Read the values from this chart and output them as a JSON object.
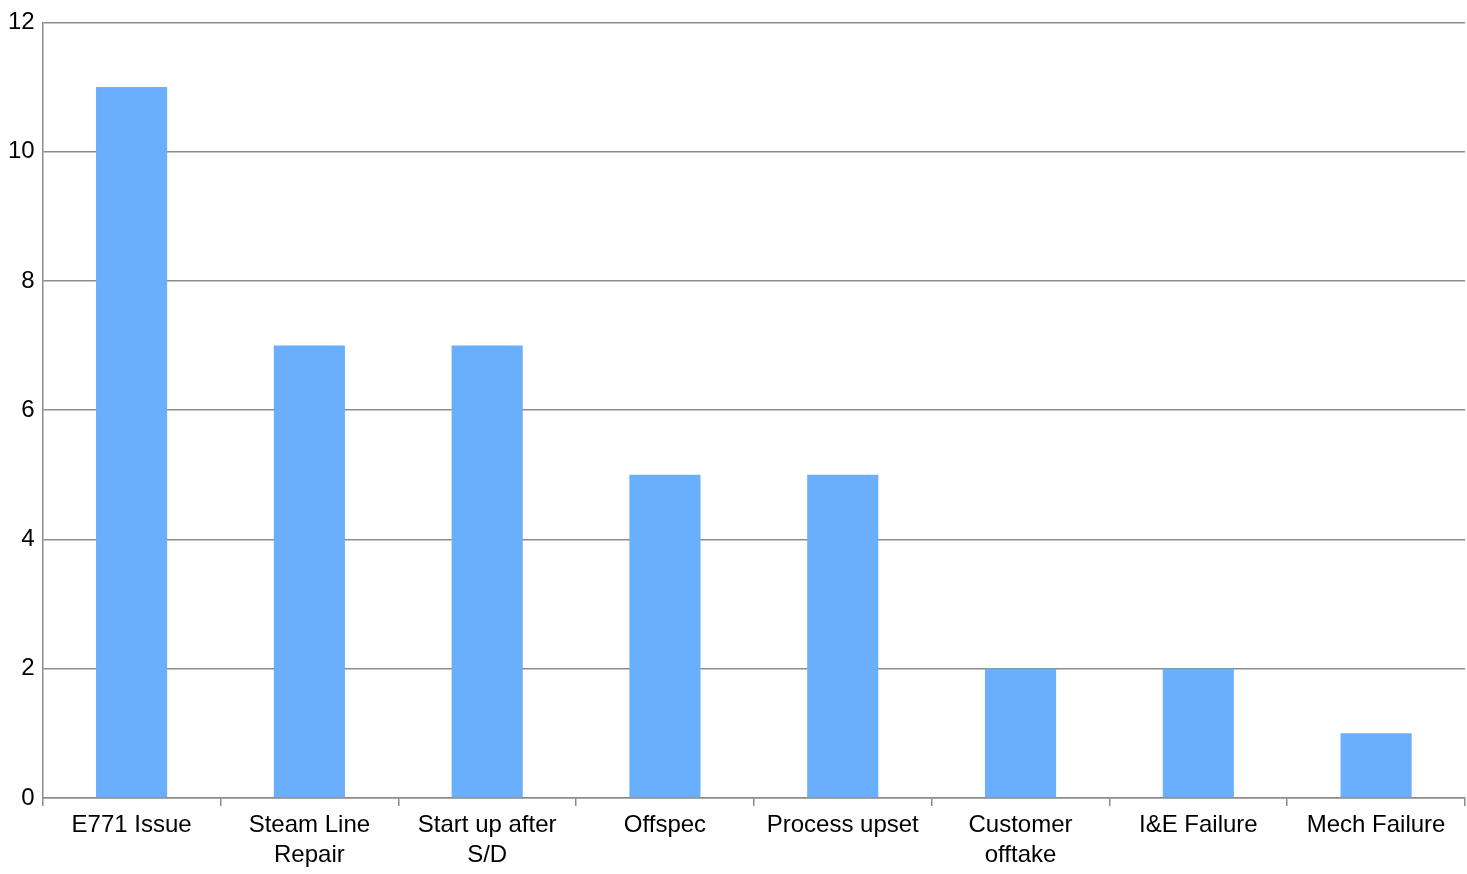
{
  "chart_data": {
    "type": "bar",
    "categories": [
      "E771 Issue",
      "Steam Line Repair",
      "Start up after S/D",
      "Offspec",
      "Process upset",
      "Customer offtake",
      "I&E Failure",
      "Mech Failure"
    ],
    "values": [
      11,
      7,
      7,
      5,
      5,
      2,
      2,
      1
    ],
    "color": "#6aaefe",
    "ylim": [
      0,
      12
    ],
    "yticks": [
      0,
      2,
      4,
      6,
      8,
      10,
      12
    ],
    "grid": "y",
    "legend": false
  }
}
